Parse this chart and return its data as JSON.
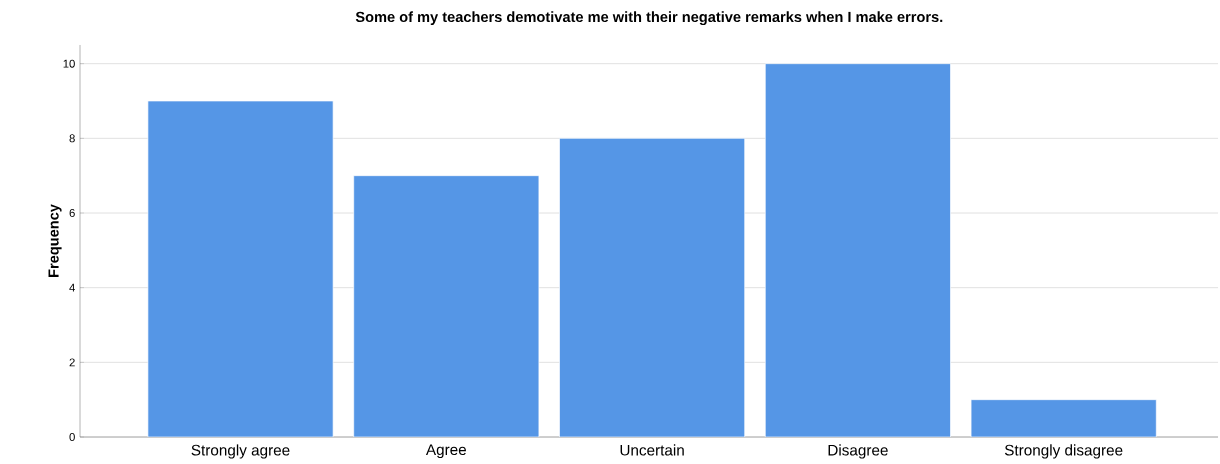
{
  "chart_data": {
    "type": "bar",
    "title": "Some of my teachers demotivate me with their negative remarks when I make errors.",
    "ylabel": "Frequency",
    "categories": [
      "Strongly agree",
      "Agree",
      "Uncertain",
      "Disagree",
      "Strongly disagree"
    ],
    "values": [
      9,
      7,
      8,
      10,
      1
    ],
    "color": "#5596e6",
    "ylim": [
      0,
      10.5
    ],
    "yticks": [
      0,
      2,
      4,
      6,
      8,
      10
    ],
    "grid": "y"
  }
}
